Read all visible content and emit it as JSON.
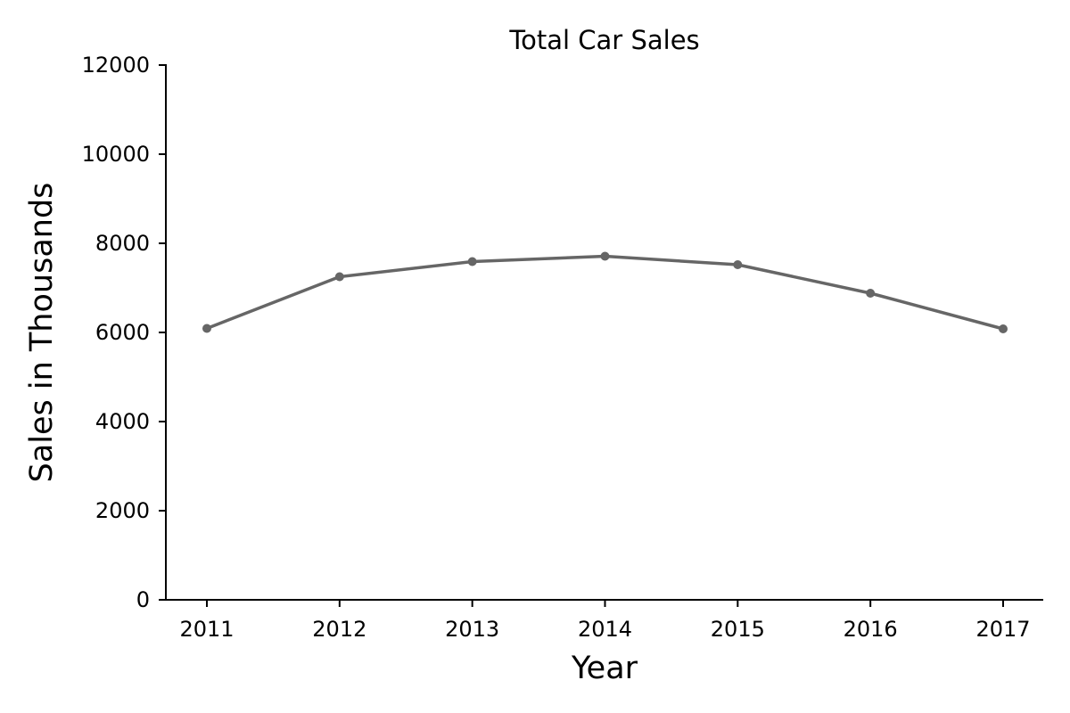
{
  "chart_data": {
    "type": "line",
    "title": "Total Car Sales",
    "xlabel": "Year",
    "ylabel": "Sales in Thousands",
    "x": [
      "2011",
      "2012",
      "2013",
      "2014",
      "2015",
      "2016",
      "2017"
    ],
    "series": [
      {
        "values": [
          6090,
          7250,
          7590,
          7710,
          7520,
          6880,
          6080
        ]
      }
    ],
    "ylim": [
      0,
      12000
    ],
    "yticks": [
      0,
      2000,
      4000,
      6000,
      8000,
      10000,
      12000
    ],
    "grid": false,
    "legend": "none",
    "colors": {
      "line": "#666666",
      "marker": "#666666"
    }
  }
}
